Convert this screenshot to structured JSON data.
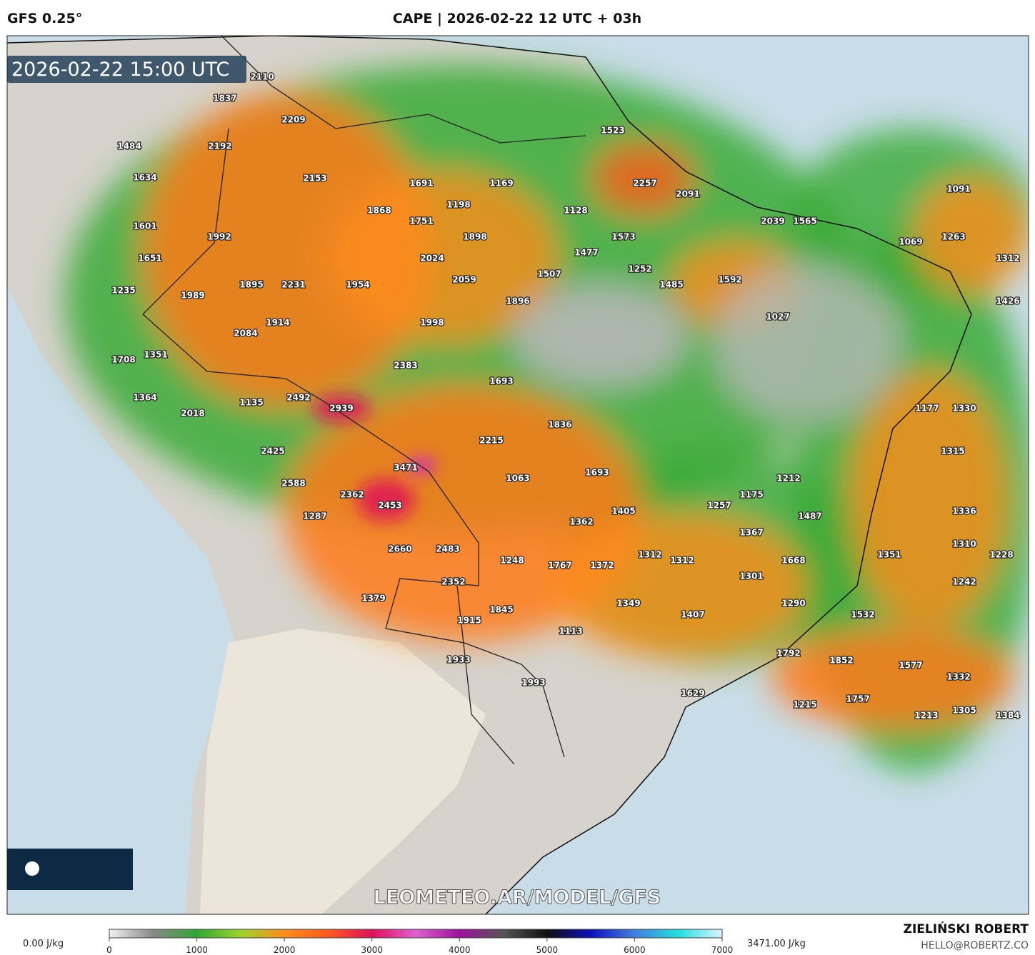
{
  "header": {
    "model": "GFS 0.25°",
    "title": "CAPE | 2026-02-22 12 UTC + 03h"
  },
  "map": {
    "valid_time": "2026-02-22 15:00 UTC",
    "watermark": "LEOMETEO.AR/MODEL/GFS",
    "cape_labels": [
      2110,
      1837,
      2209,
      1523,
      1484,
      2192,
      2153,
      1634,
      1691,
      1169,
      2257,
      2091,
      1091,
      1868,
      1198,
      1128,
      1751,
      2039,
      1565,
      1601,
      1992,
      1898,
      1573,
      1069,
      1263,
      1651,
      2024,
      1477,
      1312,
      1252,
      1507,
      2059,
      1592,
      1485,
      1895,
      2231,
      1954,
      1235,
      1989,
      1896,
      1426,
      1027,
      1914,
      1998,
      2084,
      1351,
      1708,
      2383,
      1693,
      2492,
      1135,
      1364,
      2939,
      1177,
      1330,
      2018,
      1836,
      2215,
      2425,
      1315,
      3471,
      1693,
      1063,
      1212,
      2588,
      1175,
      2362,
      1257,
      2453,
      1487,
      1405,
      1336,
      1287,
      1362,
      1367,
      2660,
      2483,
      1351,
      1310,
      1228,
      1312,
      1312,
      1248,
      1767,
      1372,
      1668,
      1301,
      1242,
      2352,
      1379,
      1349,
      1290,
      1845,
      1532,
      1407,
      1915,
      1113,
      1792,
      1852,
      1933,
      1577,
      1332,
      1993,
      1629,
      1757,
      1215,
      1305,
      1213,
      1384
    ]
  },
  "colorbar": {
    "min_label": "0.00 J/kg",
    "max_label": "3471.00 J/kg",
    "lim": [
      0,
      7000
    ],
    "ticks": [
      0,
      1000,
      2000,
      3000,
      4000,
      5000,
      6000,
      7000
    ],
    "colors": [
      "#f2f2f2",
      "#888888",
      "#2fa82f",
      "#9ad62a",
      "#ff8c1a",
      "#ff5a1a",
      "#e0105a",
      "#e060d0",
      "#a010a0",
      "#555555",
      "#101010",
      "#1010c0",
      "#4080e0",
      "#20e0e0",
      "#d8f4ff"
    ]
  },
  "footer": {
    "author": "ZIELIŃSKI ROBERT",
    "contact": "HELLO@ROBERTZ.CO"
  }
}
